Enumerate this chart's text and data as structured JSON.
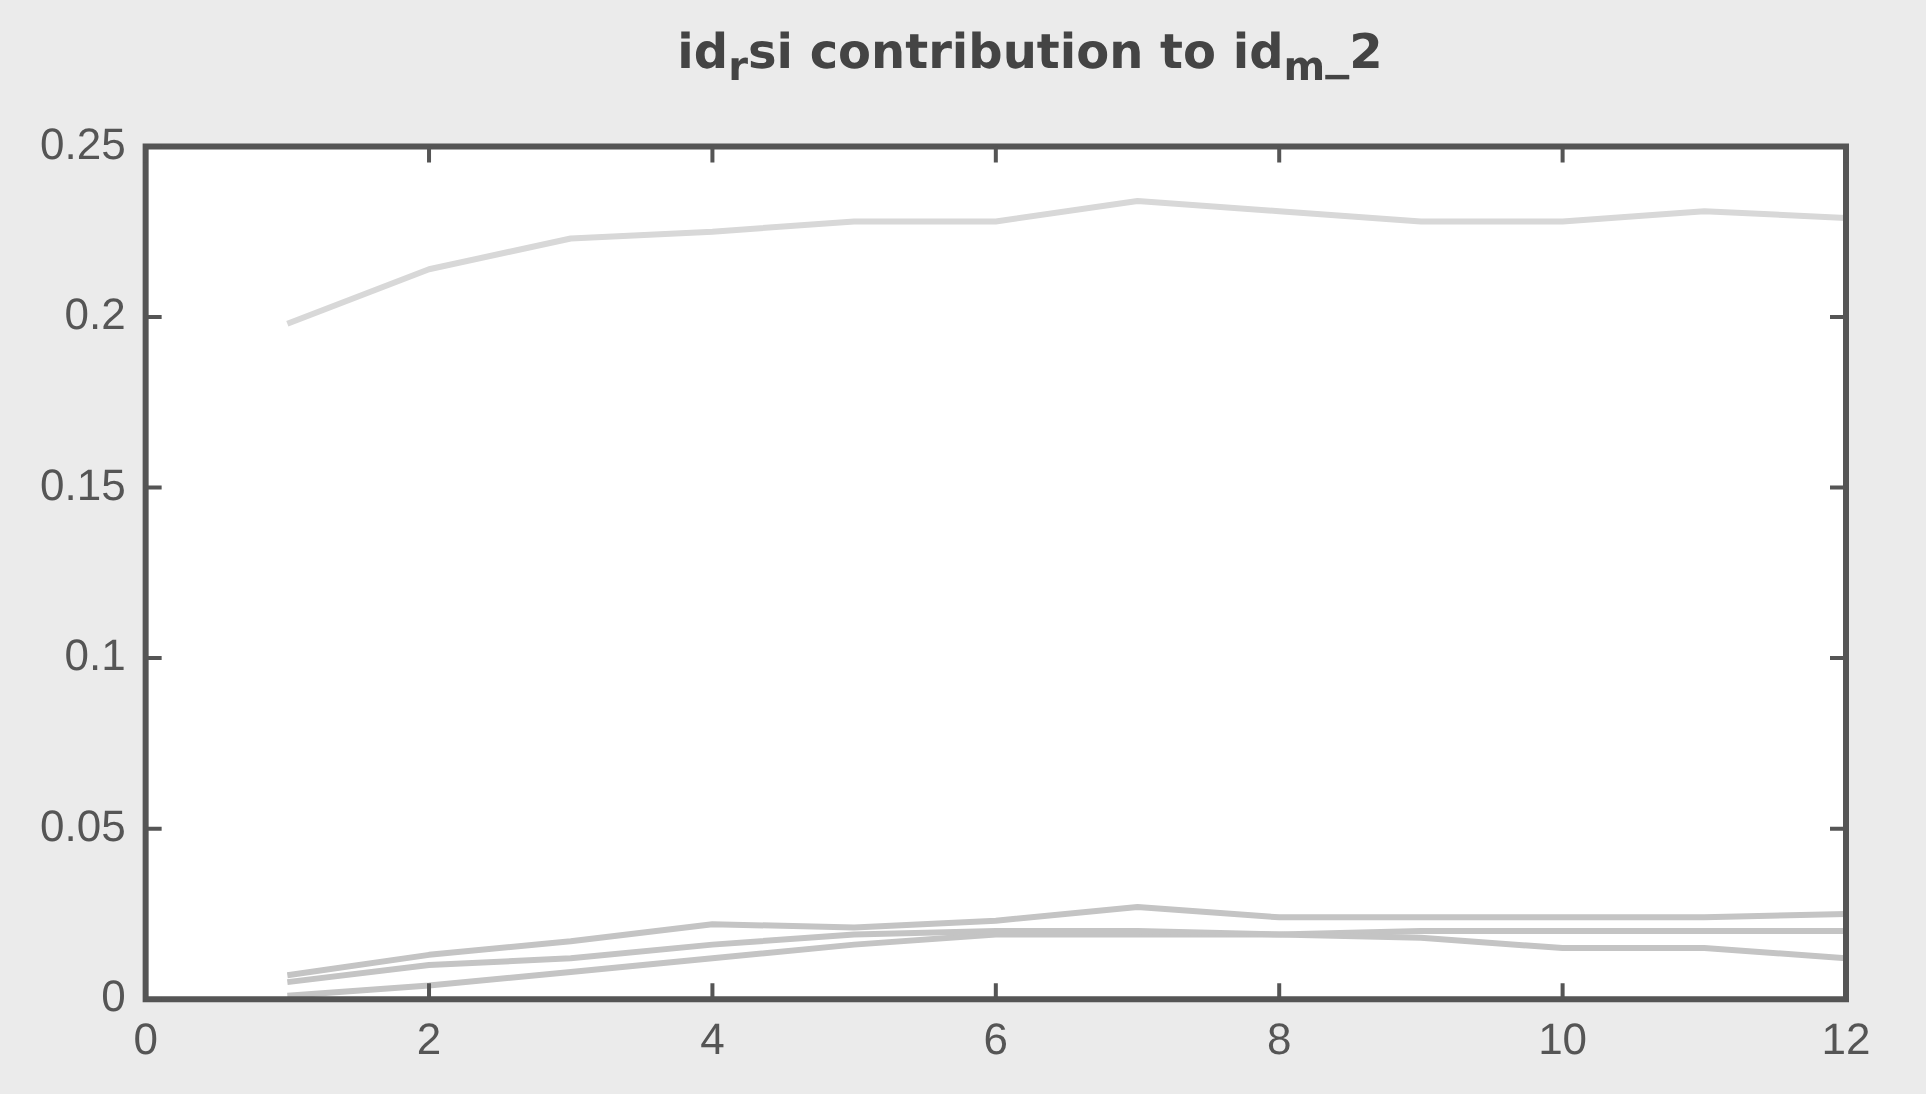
{
  "chart_data": {
    "type": "line",
    "title": "id$_{r}$si contribution to id$_{m}$_2",
    "x": [
      1,
      2,
      3,
      4,
      5,
      6,
      7,
      8,
      9,
      10,
      11,
      12
    ],
    "series": [
      {
        "color": "#d8d8d8",
        "values": [
          0.198,
          0.214,
          0.223,
          0.225,
          0.228,
          0.228,
          0.234,
          0.231,
          0.228,
          0.228,
          0.231,
          0.229
        ]
      },
      {
        "color": "#c4c4c4",
        "values": [
          0.007,
          0.013,
          0.017,
          0.022,
          0.021,
          0.023,
          0.027,
          0.024,
          0.024,
          0.024,
          0.024,
          0.025
        ]
      },
      {
        "color": "#c4c4c4",
        "values": [
          0.005,
          0.01,
          0.012,
          0.016,
          0.019,
          0.02,
          0.02,
          0.019,
          0.018,
          0.015,
          0.015,
          0.012
        ]
      },
      {
        "color": "#c4c4c4",
        "values": [
          0.001,
          0.004,
          0.008,
          0.012,
          0.016,
          0.019,
          0.019,
          0.019,
          0.02,
          0.02,
          0.02,
          0.02
        ]
      }
    ],
    "xlim": [
      0,
      12
    ],
    "xticks": [
      0,
      2,
      4,
      6,
      8,
      10,
      12
    ],
    "ylim": [
      0,
      0.25
    ],
    "yticks": [
      0,
      0.05,
      0.1,
      0.15,
      0.2,
      0.25
    ],
    "grid": false,
    "legend": false,
    "marker": "none",
    "line_style": "solid"
  }
}
